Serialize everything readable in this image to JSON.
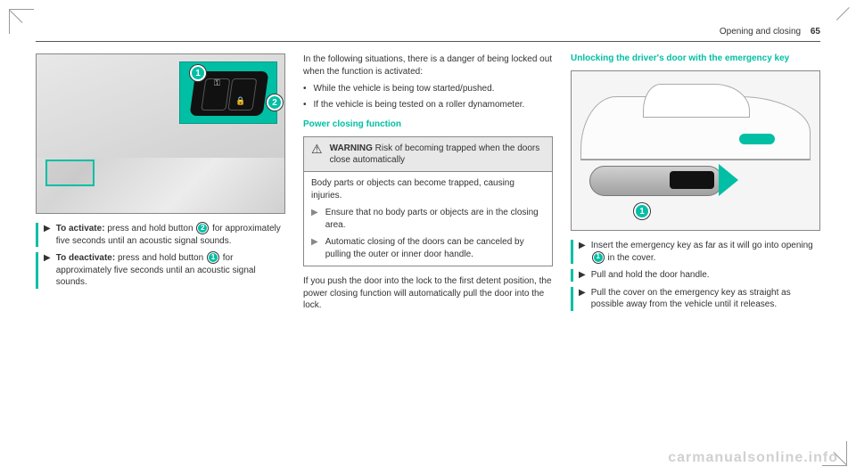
{
  "header": {
    "section": "Opening and closing",
    "page": "65"
  },
  "col1": {
    "fig": {
      "marker1": "1",
      "marker2": "2"
    },
    "activate": {
      "bold": "To activate:",
      "pre": " press and hold button ",
      "marker": "2",
      "post": " for approximately five seconds until an acoustic signal sounds."
    },
    "deactivate": {
      "bold": "To deactivate:",
      "pre": " press and hold button ",
      "marker": "1",
      "post": " for approximately five seconds until an acoustic signal sounds."
    }
  },
  "col2": {
    "intro": "In the following situations, there is a danger of being locked out when the function is activated:",
    "b1": "While the vehicle is being tow started/pushed.",
    "b2": "If the vehicle is being tested on a roller dynamometer.",
    "section_title": "Power closing function",
    "warning": {
      "label": "WARNING",
      "head": " Risk of becoming trapped when the doors close automatically",
      "body": "Body parts or objects can become trapped, causing injuries.",
      "sub1": "Ensure that no body parts or objects are in the closing area.",
      "sub2": "Automatic closing of the doors can be canceled by pulling the outer or inner door handle."
    },
    "closing": "If you push the door into the lock to the first detent position, the power closing function will automatically pull the door into the lock."
  },
  "col3": {
    "section_title": "Unlocking the driver's door with the emergency key",
    "fig": {
      "marker1": "1"
    },
    "s1_pre": "Insert the emergency key as far as it will go into opening ",
    "s1_marker": "1",
    "s1_post": " in the cover.",
    "s2": "Pull and hold the door handle.",
    "s3": "Pull the cover on the emergency key as straight as possible away from the vehicle until it releases."
  },
  "watermark": "carmanualsonline.info",
  "colors": {
    "accent": "#00bfa5"
  }
}
